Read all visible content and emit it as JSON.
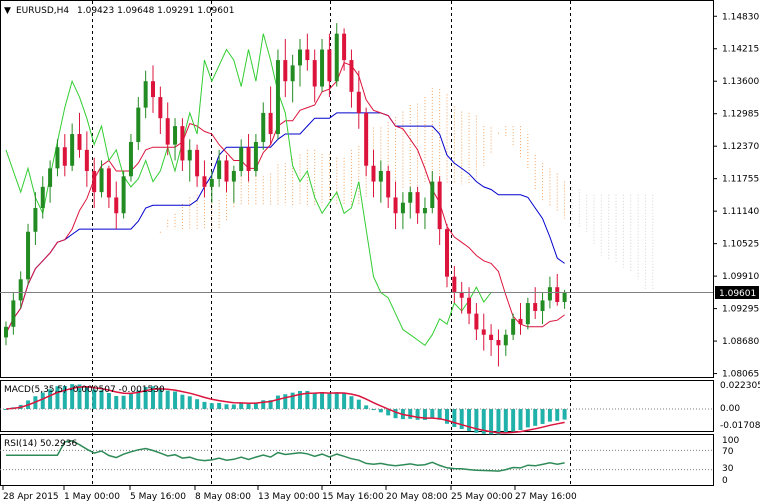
{
  "header": {
    "symbol": "EURUSD,H4",
    "ohlc": "1.09423 1.09648 1.09291 1.09601"
  },
  "price_axis": {
    "ticks": [
      "1.14830",
      "1.14215",
      "1.13600",
      "1.12985",
      "1.12370",
      "1.11755",
      "1.11140",
      "1.10525",
      "1.09910",
      "1.09295",
      "1.08680",
      "1.08065"
    ],
    "current": "1.09601"
  },
  "macd": {
    "label": "MACD(5,35,5) -0.000507 -0.001530",
    "ticks": [
      "0.022305",
      "0.00",
      "-0.017081"
    ]
  },
  "rsi": {
    "label": "RSI(14) 50.2936",
    "ticks": [
      "100",
      "70",
      "30",
      "0"
    ]
  },
  "time_axis": {
    "labels": [
      "28 Apr 2015",
      "1 May 00:00",
      "5 May 16:00",
      "8 May 08:00",
      "13 May 00:00",
      "15 May 16:00",
      "20 May 08:00",
      "25 May 00:00",
      "27 May 16:00"
    ]
  },
  "colors": {
    "bull": "#228B22",
    "bear": "#DC143C",
    "tenkan": "#DC143C",
    "kijun": "#0000CD",
    "chikou": "#32CD32",
    "cloud": "#F4A460",
    "cloud_future": "#D3D3D3",
    "macd_hist": "#20B2AA",
    "macd_signal": "#DC143C",
    "rsi_line": "#2E8B57"
  },
  "chart_data": {
    "type": "candlestick",
    "symbol": "EURUSD",
    "timeframe": "H4",
    "ylim": [
      1.08,
      1.151
    ],
    "last_price": 1.09601,
    "ohlc": [
      [
        1.0875,
        1.0905,
        1.086,
        1.0895
      ],
      [
        1.0895,
        1.096,
        1.088,
        1.0945
      ],
      [
        1.0945,
        1.1,
        1.093,
        1.0985
      ],
      [
        1.0985,
        1.109,
        1.0975,
        1.1075
      ],
      [
        1.1075,
        1.115,
        1.105,
        1.112
      ],
      [
        1.112,
        1.118,
        1.11,
        1.116
      ],
      [
        1.116,
        1.121,
        1.113,
        1.1195
      ],
      [
        1.1195,
        1.125,
        1.118,
        1.1235
      ],
      [
        1.1235,
        1.126,
        1.118,
        1.12
      ],
      [
        1.12,
        1.128,
        1.119,
        1.126
      ],
      [
        1.126,
        1.13,
        1.1215,
        1.123
      ],
      [
        1.123,
        1.1265,
        1.116,
        1.119
      ],
      [
        1.119,
        1.1215,
        1.112,
        1.115
      ],
      [
        1.115,
        1.121,
        1.114,
        1.1195
      ],
      [
        1.1195,
        1.12,
        1.112,
        1.114
      ],
      [
        1.114,
        1.117,
        1.108,
        1.111
      ],
      [
        1.111,
        1.119,
        1.11,
        1.118
      ],
      [
        1.118,
        1.126,
        1.117,
        1.1245
      ],
      [
        1.1245,
        1.133,
        1.123,
        1.131
      ],
      [
        1.131,
        1.138,
        1.129,
        1.136
      ],
      [
        1.136,
        1.139,
        1.13,
        1.133
      ],
      [
        1.133,
        1.135,
        1.126,
        1.129
      ],
      [
        1.129,
        1.132,
        1.122,
        1.124
      ],
      [
        1.124,
        1.129,
        1.121,
        1.1275
      ],
      [
        1.1275,
        1.129,
        1.119,
        1.121
      ],
      [
        1.121,
        1.125,
        1.117,
        1.123
      ],
      [
        1.123,
        1.124,
        1.116,
        1.118
      ],
      [
        1.118,
        1.121,
        1.114,
        1.116
      ],
      [
        1.116,
        1.119,
        1.113,
        1.1175
      ],
      [
        1.1175,
        1.123,
        1.116,
        1.121
      ],
      [
        1.121,
        1.122,
        1.115,
        1.117
      ],
      [
        1.117,
        1.12,
        1.113,
        1.119
      ],
      [
        1.119,
        1.125,
        1.118,
        1.1235
      ],
      [
        1.1235,
        1.126,
        1.117,
        1.119
      ],
      [
        1.119,
        1.126,
        1.118,
        1.1245
      ],
      [
        1.1245,
        1.132,
        1.123,
        1.13
      ],
      [
        1.13,
        1.135,
        1.124,
        1.126
      ],
      [
        1.126,
        1.142,
        1.125,
        1.14
      ],
      [
        1.14,
        1.144,
        1.133,
        1.136
      ],
      [
        1.136,
        1.141,
        1.132,
        1.139
      ],
      [
        1.139,
        1.144,
        1.135,
        1.142
      ],
      [
        1.142,
        1.145,
        1.138,
        1.14
      ],
      [
        1.14,
        1.142,
        1.132,
        1.135
      ],
      [
        1.135,
        1.144,
        1.134,
        1.142
      ],
      [
        1.142,
        1.145,
        1.133,
        1.136
      ],
      [
        1.136,
        1.147,
        1.135,
        1.145
      ],
      [
        1.145,
        1.146,
        1.138,
        1.14
      ],
      [
        1.14,
        1.142,
        1.131,
        1.134
      ],
      [
        1.134,
        1.138,
        1.127,
        1.13
      ],
      [
        1.13,
        1.131,
        1.118,
        1.12
      ],
      [
        1.12,
        1.123,
        1.114,
        1.117
      ],
      [
        1.117,
        1.121,
        1.113,
        1.119
      ],
      [
        1.119,
        1.12,
        1.112,
        1.114
      ],
      [
        1.114,
        1.117,
        1.108,
        1.111
      ],
      [
        1.111,
        1.115,
        1.108,
        1.113
      ],
      [
        1.113,
        1.116,
        1.11,
        1.115
      ],
      [
        1.115,
        1.116,
        1.109,
        1.111
      ],
      [
        1.111,
        1.114,
        1.108,
        1.112
      ],
      [
        1.112,
        1.119,
        1.111,
        1.117
      ],
      [
        1.117,
        1.118,
        1.105,
        1.108
      ],
      [
        1.108,
        1.109,
        1.097,
        1.099
      ],
      [
        1.099,
        1.101,
        1.094,
        1.096
      ],
      [
        1.096,
        1.098,
        1.092,
        1.095
      ],
      [
        1.095,
        1.097,
        1.09,
        1.092
      ],
      [
        1.092,
        1.094,
        1.087,
        1.089
      ],
      [
        1.089,
        1.092,
        1.085,
        1.088
      ],
      [
        1.088,
        1.09,
        1.084,
        1.087
      ],
      [
        1.087,
        1.089,
        1.082,
        1.086
      ],
      [
        1.086,
        1.089,
        1.084,
        1.088
      ],
      [
        1.088,
        1.092,
        1.087,
        1.091
      ],
      [
        1.091,
        1.094,
        1.088,
        1.09
      ],
      [
        1.09,
        1.095,
        1.089,
        1.094
      ],
      [
        1.094,
        1.097,
        1.091,
        1.0925
      ],
      [
        1.0925,
        1.096,
        1.09,
        1.0945
      ],
      [
        1.0945,
        1.099,
        1.093,
        1.097
      ],
      [
        1.097,
        1.0995,
        1.0935,
        1.0942
      ],
      [
        1.0942,
        1.0965,
        1.0929,
        1.096
      ]
    ]
  }
}
